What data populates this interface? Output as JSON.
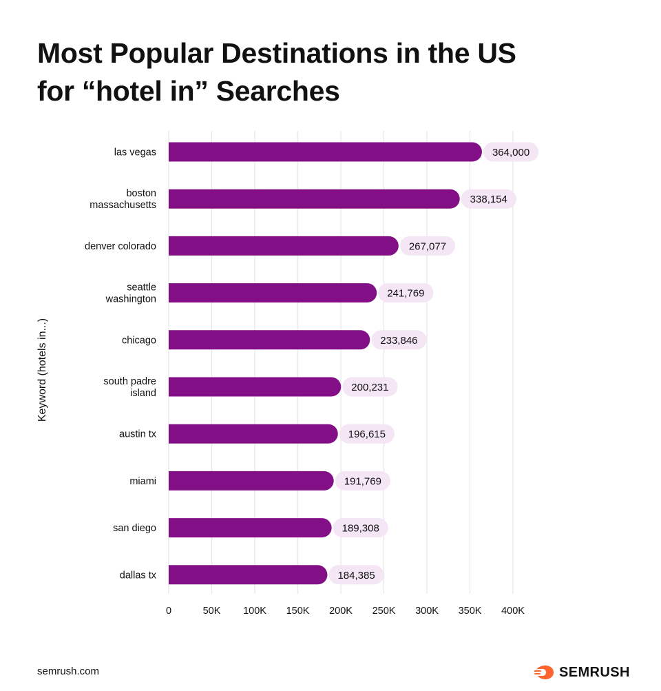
{
  "title_lines": [
    "Most Popular Destinations in the US",
    "for “hotel in” Searches"
  ],
  "footer": {
    "url": "semrush.com",
    "brand": "SEMRUSH"
  },
  "colors": {
    "bar": "#820f86",
    "label_bg": "#f4e6f5",
    "grid": "#e6e6e6",
    "brand": "#ff642d"
  },
  "chart_data": {
    "type": "bar",
    "orientation": "horizontal",
    "title": "Most Popular Destinations in the US for “hotel in” Searches",
    "ylabel": "Keyword (hotels in...)",
    "xlabel": "",
    "categories": [
      [
        "las vegas"
      ],
      [
        "boston",
        "massachusetts"
      ],
      [
        "denver colorado"
      ],
      [
        "seattle",
        "washington"
      ],
      [
        "chicago"
      ],
      [
        "south padre",
        "island"
      ],
      [
        "austin tx"
      ],
      [
        "miami"
      ],
      [
        "san diego"
      ],
      [
        "dallas tx"
      ]
    ],
    "values": [
      364000,
      338154,
      267077,
      241769,
      233846,
      200231,
      196615,
      191769,
      189308,
      184385
    ],
    "value_labels": [
      "364,000",
      "338,154",
      "267,077",
      "241,769",
      "233,846",
      "200,231",
      "196,615",
      "191,769",
      "189,308",
      "184,385"
    ],
    "xlim": [
      0,
      400000
    ],
    "xticks": [
      0,
      50000,
      100000,
      150000,
      200000,
      250000,
      300000,
      350000,
      400000
    ],
    "xtick_labels": [
      "0",
      "50K",
      "100K",
      "150K",
      "200K",
      "250K",
      "300K",
      "350K",
      "400K"
    ],
    "grid": "vertical",
    "legend": "none"
  }
}
